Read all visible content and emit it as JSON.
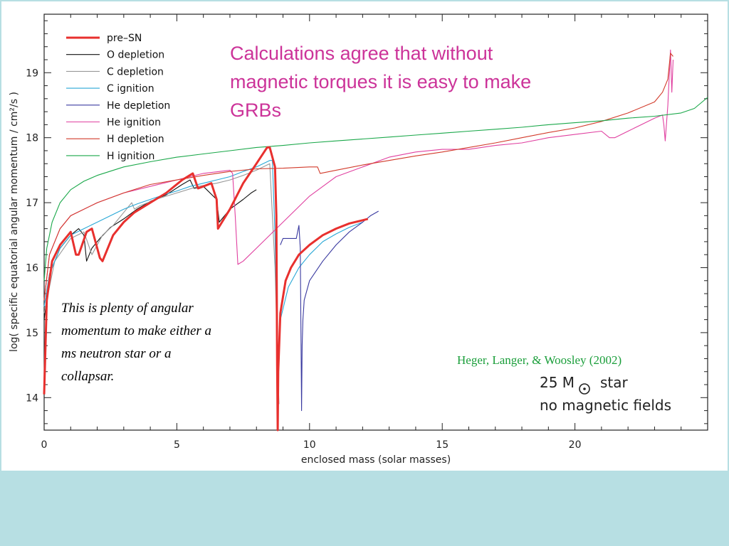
{
  "slide": {
    "headline_lines": [
      "Calculations agree that without",
      "magnetic torques it is easy to make",
      "GRBs"
    ],
    "note_lines": [
      "This is plenty of angular",
      "momentum to make either a",
      "ms neutron star or  a",
      "collapsar."
    ],
    "credit": "Heger, Langer, & Woosley (2002)",
    "star_label_a": "25 M",
    "star_label_b": "star",
    "star_label_c": "no magnetic fields",
    "sun_icon": "sun-symbol-icon"
  },
  "chart_data": {
    "type": "line",
    "title": "",
    "xlabel": "enclosed mass (solar masses)",
    "ylabel": "log( specific equatorial angular momentum / cm²/s )",
    "xlim": [
      0,
      25
    ],
    "ylim": [
      13.5,
      19.9
    ],
    "xticks": [
      0,
      5,
      10,
      15,
      20
    ],
    "yticks": [
      14,
      15,
      16,
      17,
      18,
      19
    ],
    "grid": false,
    "legend_position": "top-left",
    "series": [
      {
        "name": "pre–SN",
        "color": "#e8302e",
        "width": 3,
        "x": [
          0.0,
          0.1,
          0.3,
          0.6,
          1.0,
          1.2,
          1.3,
          1.6,
          1.8,
          2.1,
          2.2,
          2.6,
          3.0,
          3.4,
          4.0,
          4.6,
          5.2,
          5.6,
          5.8,
          6.0,
          6.3,
          6.5,
          6.55,
          7.0,
          7.5,
          8.0,
          8.4,
          8.5,
          8.7,
          8.75,
          8.78,
          8.8,
          8.82,
          8.9,
          9.1,
          9.3,
          9.6,
          10.0,
          10.5,
          11.0,
          11.5,
          12.0,
          12.2
        ],
        "y": [
          14.05,
          15.5,
          16.1,
          16.35,
          16.55,
          16.2,
          16.2,
          16.55,
          16.6,
          16.15,
          16.1,
          16.5,
          16.7,
          16.85,
          17.0,
          17.15,
          17.35,
          17.45,
          17.22,
          17.25,
          17.3,
          17.05,
          16.6,
          16.9,
          17.3,
          17.6,
          17.85,
          17.85,
          17.55,
          16.8,
          14.5,
          13.5,
          14.4,
          15.3,
          15.8,
          16.0,
          16.2,
          16.35,
          16.5,
          16.6,
          16.68,
          16.73,
          16.75
        ]
      },
      {
        "name": "O depletion",
        "color": "#111111",
        "width": 1.1,
        "x": [
          0.0,
          0.2,
          0.6,
          1.0,
          1.3,
          1.5,
          1.6,
          1.8,
          2.1,
          2.5,
          3.0,
          3.5,
          4.0,
          4.6,
          5.2,
          5.5,
          5.65,
          6.0,
          6.5,
          6.6,
          7.0,
          7.5,
          7.8,
          8.0
        ],
        "y": [
          15.2,
          15.9,
          16.3,
          16.5,
          16.6,
          16.5,
          16.1,
          16.3,
          16.45,
          16.62,
          16.75,
          16.9,
          17.02,
          17.12,
          17.28,
          17.35,
          17.22,
          17.25,
          17.05,
          16.7,
          16.9,
          17.05,
          17.15,
          17.2
        ]
      },
      {
        "name": "C depletion",
        "color": "#999999",
        "width": 1.1,
        "x": [
          0.0,
          0.4,
          1.0,
          1.5,
          1.8,
          2.2,
          2.6,
          3.0,
          3.3,
          3.4,
          3.6,
          4.2,
          5.0,
          5.8,
          6.5,
          7.0,
          7.5,
          8.0,
          8.5,
          8.7,
          8.8,
          8.85
        ],
        "y": [
          15.3,
          16.1,
          16.45,
          16.55,
          16.2,
          16.5,
          16.65,
          16.85,
          17.0,
          16.9,
          16.95,
          17.05,
          17.15,
          17.25,
          17.3,
          17.35,
          17.42,
          17.5,
          17.6,
          16.0,
          14.5,
          13.9
        ]
      },
      {
        "name": "C ignition",
        "color": "#29a8d6",
        "width": 1.1,
        "x": [
          0.0,
          0.2,
          0.6,
          1.0,
          1.5,
          2.0,
          2.5,
          3.0,
          3.5,
          4.0,
          4.5,
          5.0,
          5.5,
          6.0,
          6.5,
          7.0,
          7.5,
          8.0,
          8.5,
          8.6,
          8.7,
          8.75,
          8.8,
          8.85,
          8.9,
          9.2,
          9.6,
          10.0,
          10.5,
          11.0,
          11.5,
          12.0
        ],
        "y": [
          15.4,
          15.9,
          16.3,
          16.5,
          16.6,
          16.7,
          16.8,
          16.9,
          16.98,
          17.05,
          17.12,
          17.18,
          17.25,
          17.3,
          17.35,
          17.4,
          17.48,
          17.55,
          17.65,
          17.65,
          16.5,
          15.5,
          13.8,
          14.8,
          15.2,
          15.7,
          16.0,
          16.2,
          16.4,
          16.52,
          16.62,
          16.7
        ]
      },
      {
        "name": "He depletion",
        "color": "#3a3aa0",
        "width": 1.1,
        "x": [
          8.9,
          9.0,
          9.3,
          9.5,
          9.6,
          9.65,
          9.7,
          9.72,
          9.75,
          9.8,
          10.0,
          10.5,
          11.0,
          11.5,
          12.0,
          12.3,
          12.6
        ],
        "y": [
          16.35,
          16.45,
          16.45,
          16.45,
          16.65,
          16.3,
          13.8,
          14.8,
          15.2,
          15.5,
          15.8,
          16.1,
          16.35,
          16.55,
          16.7,
          16.8,
          16.87
        ]
      },
      {
        "name": "He ignition",
        "color": "#e040a0",
        "width": 1.1,
        "x": [
          0.0,
          0.2,
          0.6,
          1.0,
          2.0,
          3.0,
          4.0,
          5.0,
          6.0,
          7.0,
          7.1,
          7.2,
          7.3,
          7.5,
          8.0,
          9.0,
          10.0,
          11.0,
          12.0,
          13.0,
          14.0,
          15.0,
          16.0,
          17.0,
          18.0,
          19.0,
          20.0,
          21.0,
          21.3,
          21.5,
          22.0,
          22.5,
          23.0,
          23.3,
          23.35,
          23.4,
          23.5,
          23.6,
          23.65,
          23.7
        ],
        "y": [
          15.5,
          16.2,
          16.6,
          16.8,
          17.0,
          17.15,
          17.25,
          17.35,
          17.45,
          17.5,
          17.45,
          16.8,
          16.05,
          16.1,
          16.3,
          16.7,
          17.1,
          17.4,
          17.55,
          17.7,
          17.78,
          17.82,
          17.82,
          17.88,
          17.92,
          18.0,
          18.05,
          18.1,
          18.0,
          18.0,
          18.1,
          18.2,
          18.3,
          18.35,
          18.2,
          17.95,
          18.5,
          19.35,
          18.7,
          19.2
        ]
      },
      {
        "name": "H depletion",
        "color": "#d23a2a",
        "width": 1.1,
        "x": [
          0.0,
          0.2,
          0.6,
          1.0,
          2.0,
          3.0,
          4.0,
          5.0,
          6.0,
          7.0,
          8.0,
          9.0,
          10.0,
          10.3,
          10.4,
          11.0,
          12.0,
          13.0,
          14.0,
          15.0,
          16.0,
          17.0,
          18.0,
          19.0,
          20.0,
          21.0,
          22.0,
          23.0,
          23.3,
          23.5,
          23.6,
          23.7
        ],
        "y": [
          15.5,
          16.2,
          16.6,
          16.8,
          17.0,
          17.15,
          17.28,
          17.35,
          17.42,
          17.48,
          17.52,
          17.53,
          17.55,
          17.55,
          17.45,
          17.5,
          17.58,
          17.65,
          17.72,
          17.78,
          17.85,
          17.92,
          18.0,
          18.08,
          18.15,
          18.25,
          18.38,
          18.55,
          18.7,
          18.9,
          19.3,
          19.25
        ]
      },
      {
        "name": "H ignition",
        "color": "#1aa84a",
        "width": 1.1,
        "x": [
          0.0,
          0.1,
          0.3,
          0.6,
          1.0,
          1.5,
          2.0,
          3.0,
          4.0,
          5.0,
          6.0,
          7.0,
          8.0,
          9.0,
          10.0,
          11.0,
          12.0,
          13.0,
          14.0,
          15.0,
          16.0,
          17.0,
          18.0,
          19.0,
          20.0,
          21.0,
          22.0,
          23.0,
          24.0,
          24.5,
          25.0
        ],
        "y": [
          15.8,
          16.3,
          16.7,
          17.0,
          17.2,
          17.33,
          17.42,
          17.55,
          17.63,
          17.7,
          17.75,
          17.8,
          17.85,
          17.88,
          17.92,
          17.95,
          17.98,
          18.01,
          18.04,
          18.07,
          18.1,
          18.13,
          18.16,
          18.2,
          18.23,
          18.26,
          18.3,
          18.33,
          18.38,
          18.45,
          18.62
        ]
      }
    ]
  }
}
